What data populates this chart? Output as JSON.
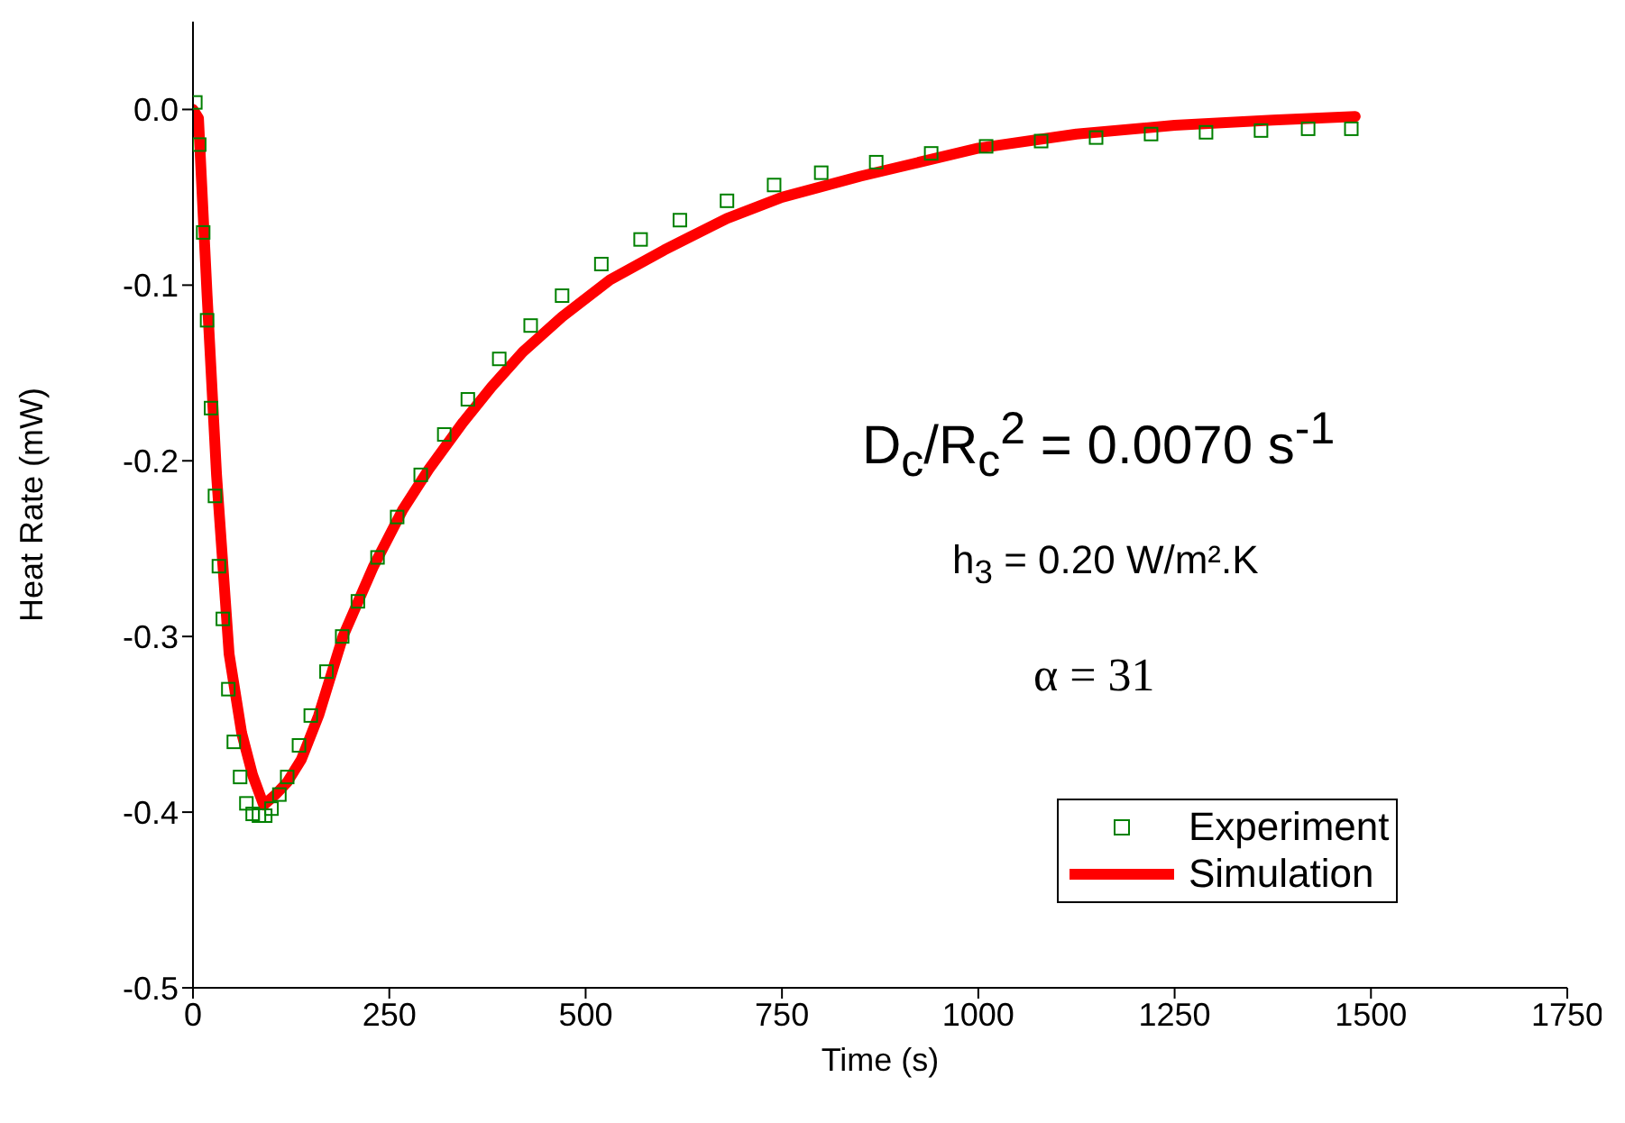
{
  "chart_data": {
    "type": "line",
    "xlabel": "Time (s)",
    "ylabel": "Heat Rate (mW)",
    "xlim": [
      0,
      1750
    ],
    "xticks": [
      0,
      250,
      500,
      750,
      1000,
      1250,
      1500,
      1750
    ],
    "ylim": [
      -0.5,
      0.05
    ],
    "yticks": [
      {
        "value": -0.5,
        "label": "-0.5"
      },
      {
        "value": -0.4,
        "label": "-0.4"
      },
      {
        "value": -0.3,
        "label": "-0.3"
      },
      {
        "value": -0.2,
        "label": "-0.2"
      },
      {
        "value": -0.1,
        "label": "-0.1"
      },
      {
        "value": 0,
        "label": "0.0"
      }
    ],
    "grid": false,
    "legend": "bottom right",
    "annotations": [
      "D$_{c}$/R$_{c}$$^{2}$ = 0.0070 s$^{-1}$",
      "h$_{3}$ = 0.20 W/m².K",
      "α = 31"
    ],
    "series": [
      {
        "name": "Experiment",
        "type": "scatter",
        "marker": "square",
        "color": "#008000",
        "x": [
          3,
          8,
          13,
          18,
          23,
          28,
          33,
          38,
          45,
          52,
          60,
          68,
          76,
          84,
          92,
          100,
          110,
          120,
          135,
          150,
          170,
          190,
          210,
          235,
          260,
          290,
          320,
          350,
          390,
          430,
          470,
          520,
          570,
          620,
          680,
          740,
          800,
          870,
          940,
          1010,
          1080,
          1150,
          1220,
          1290,
          1360,
          1420,
          1475
        ],
        "values": [
          0.004,
          -0.02,
          -0.07,
          -0.12,
          -0.17,
          -0.22,
          -0.26,
          -0.29,
          -0.33,
          -0.36,
          -0.38,
          -0.395,
          -0.401,
          -0.402,
          -0.402,
          -0.398,
          -0.39,
          -0.38,
          -0.362,
          -0.345,
          -0.32,
          -0.3,
          -0.28,
          -0.255,
          -0.232,
          -0.208,
          -0.185,
          -0.165,
          -0.142,
          -0.123,
          -0.106,
          -0.088,
          -0.074,
          -0.063,
          -0.052,
          -0.043,
          -0.036,
          -0.03,
          -0.025,
          -0.021,
          -0.018,
          -0.016,
          -0.014,
          -0.013,
          -0.012,
          -0.011,
          -0.011
        ]
      },
      {
        "name": "Simulation",
        "marker": "none",
        "line_style": "solid",
        "color": "#ff0000",
        "x": [
          0,
          7,
          18,
          30,
          46,
          62,
          76,
          90,
          105,
          120,
          138,
          160,
          191,
          230,
          267,
          300,
          344,
          380,
          420,
          470,
          531,
          600,
          680,
          750,
          850,
          1000,
          1125,
          1250,
          1375,
          1480
        ],
        "values": [
          0,
          -0.005,
          -0.106,
          -0.208,
          -0.31,
          -0.355,
          -0.379,
          -0.396,
          -0.39,
          -0.383,
          -0.37,
          -0.345,
          -0.3,
          -0.26,
          -0.228,
          -0.205,
          -0.178,
          -0.158,
          -0.138,
          -0.118,
          -0.097,
          -0.08,
          -0.062,
          -0.05,
          -0.038,
          -0.022,
          -0.014,
          -0.009,
          -0.006,
          -0.004
        ]
      }
    ]
  }
}
